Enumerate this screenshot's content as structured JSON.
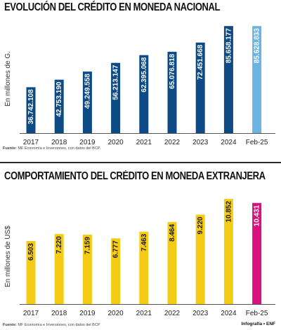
{
  "chart_data": [
    {
      "type": "bar",
      "title": "EVOLUCIÓN DEL CRÉDITO EN MONEDA NACIONAL",
      "ylabel": "En millones de G.",
      "categories": [
        "2017",
        "2018",
        "2019",
        "2020",
        "2021",
        "2022",
        "2023",
        "2024",
        "Feb-25"
      ],
      "values": [
        36742108,
        42753190,
        49249558,
        56213147,
        62395068,
        65076818,
        72451668,
        85658177,
        85628833
      ],
      "value_labels": [
        "36.742.108",
        "42.753.190",
        "49.249.558",
        "56.213.147",
        "62.395.068",
        "65.076.818",
        "72.451.668",
        "85.658.177",
        "85.628.833"
      ],
      "colors": [
        "#0d4a86",
        "#0d4a86",
        "#0d4a86",
        "#0d4a86",
        "#0d4a86",
        "#0d4a86",
        "#0d4a86",
        "#0d4a86",
        "#6cb4e0"
      ],
      "ylim": [
        0,
        88000000
      ],
      "grid": false,
      "source": "MF Economía e Inversiones, con datos del BCP."
    },
    {
      "type": "bar",
      "title": "COMPORTAMIENTO DEL CRÉDITO EN MONEDA EXTRANJERA",
      "ylabel": "En millones de US$",
      "categories": [
        "2017",
        "2018",
        "2019",
        "2020",
        "2021",
        "2022",
        "2023",
        "2024",
        "Feb-25"
      ],
      "values": [
        6503,
        7220,
        7159,
        6777,
        7463,
        8464,
        9220,
        10852,
        10431
      ],
      "value_labels": [
        "6.503",
        "7.220",
        "7.159",
        "6.777",
        "7.463",
        "8.464",
        "9.220",
        "10.852",
        "10.431"
      ],
      "colors": [
        "#f5cc15",
        "#f5cc15",
        "#f5cc15",
        "#f5cc15",
        "#f5cc15",
        "#f5cc15",
        "#f5cc15",
        "#f5cc15",
        "#d6127e"
      ],
      "ylim": [
        0,
        11200
      ],
      "grid": false,
      "source": "MF Economía e Inversiones, con datos del BCP"
    }
  ],
  "source_label": "Fuente:",
  "credit": "Infografía • ",
  "credit_logo": "ENF"
}
